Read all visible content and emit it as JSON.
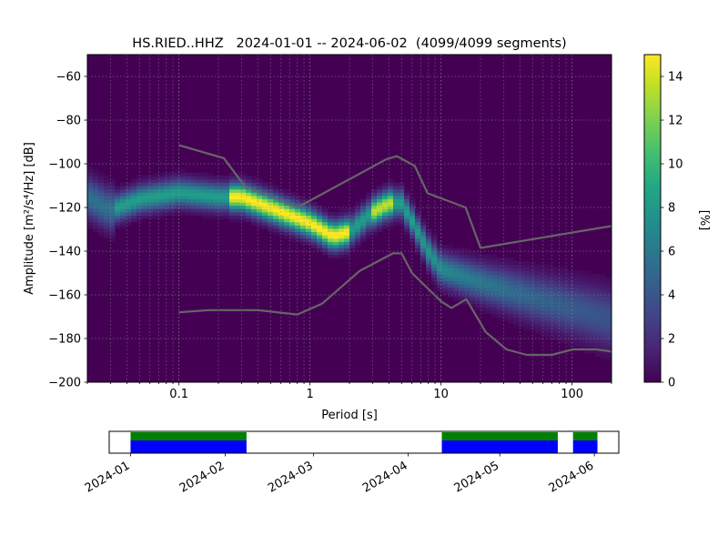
{
  "chart_data": [
    {
      "type": "heatmap",
      "title": "HS.RIED..HHZ   2024-01-01 -- 2024-06-02  (4099/4099 segments)",
      "xlabel": "Period [s]",
      "ylabel": "Amplitude [m²/s⁴/Hz] [dB]",
      "x_scale": "log",
      "xlim": [
        0.02,
        200
      ],
      "ylim": [
        -200,
        -50
      ],
      "x_ticks": [
        {
          "value": 0.1,
          "label": "0.1"
        },
        {
          "value": 1,
          "label": "1"
        },
        {
          "value": 10,
          "label": "10"
        },
        {
          "value": 100,
          "label": "100"
        }
      ],
      "y_ticks": [
        -60,
        -80,
        -100,
        -120,
        -140,
        -160,
        -180,
        -200
      ],
      "grid": true,
      "colorbar": {
        "label": "[%]",
        "range": [
          0,
          15
        ],
        "ticks": [
          0,
          2,
          4,
          6,
          8,
          10,
          12,
          14
        ],
        "colormap": "viridis"
      },
      "mode_curve": {
        "period": [
          0.02,
          0.03,
          0.05,
          0.1,
          0.2,
          0.3,
          0.5,
          1,
          1.5,
          2,
          3,
          4,
          5,
          6,
          8,
          10,
          20,
          50,
          100,
          200
        ],
        "amplitude": [
          -115,
          -121,
          -116,
          -113,
          -115,
          -115,
          -120,
          -127,
          -133,
          -131,
          -122,
          -118,
          -118,
          -126,
          -140,
          -148,
          -154,
          -161,
          -166,
          -171
        ]
      },
      "noise_model_lines": [
        {
          "name": "",
          "period": [
            0.1,
            0.17,
            0.4,
            0.8,
            1.24,
            2.4,
            4.3,
            5,
            6,
            10,
            12,
            15.6,
            21.9,
            31.6,
            45,
            70,
            101,
            154,
            200
          ],
          "amplitude": [
            -168,
            -167,
            -167,
            -169,
            -164,
            -149,
            -141,
            -141,
            -150,
            -163,
            -166,
            -162,
            -177,
            -185,
            -187.5,
            -187.5,
            -185,
            -185,
            -186
          ]
        },
        {
          "name": "",
          "period": [
            0.1,
            0.22,
            0.32,
            0.8,
            3.8,
            4.6,
            6.3,
            7.9,
            15.4,
            20,
            354.8
          ],
          "amplitude": [
            -91.5,
            -97.4,
            -110.5,
            -120,
            -98,
            -96.5,
            -101,
            -113.5,
            -120,
            -138.5,
            -126
          ]
        }
      ],
      "line_color": "#666666"
    },
    {
      "type": "timeline",
      "x_ticks": [
        "2024-01",
        "2024-02",
        "2024-03",
        "2024-04",
        "2024-05",
        "2024-06"
      ],
      "xlim": [
        "2023-12-25",
        "2024-06-09"
      ],
      "data_coverage": [
        {
          "start": "2024-01-01",
          "end": "2024-02-08"
        },
        {
          "start": "2024-04-12",
          "end": "2024-05-20"
        },
        {
          "start": "2024-05-25",
          "end": "2024-06-02"
        }
      ],
      "colors": {
        "coverage": "#0000ff",
        "processed": "#008000"
      }
    }
  ]
}
